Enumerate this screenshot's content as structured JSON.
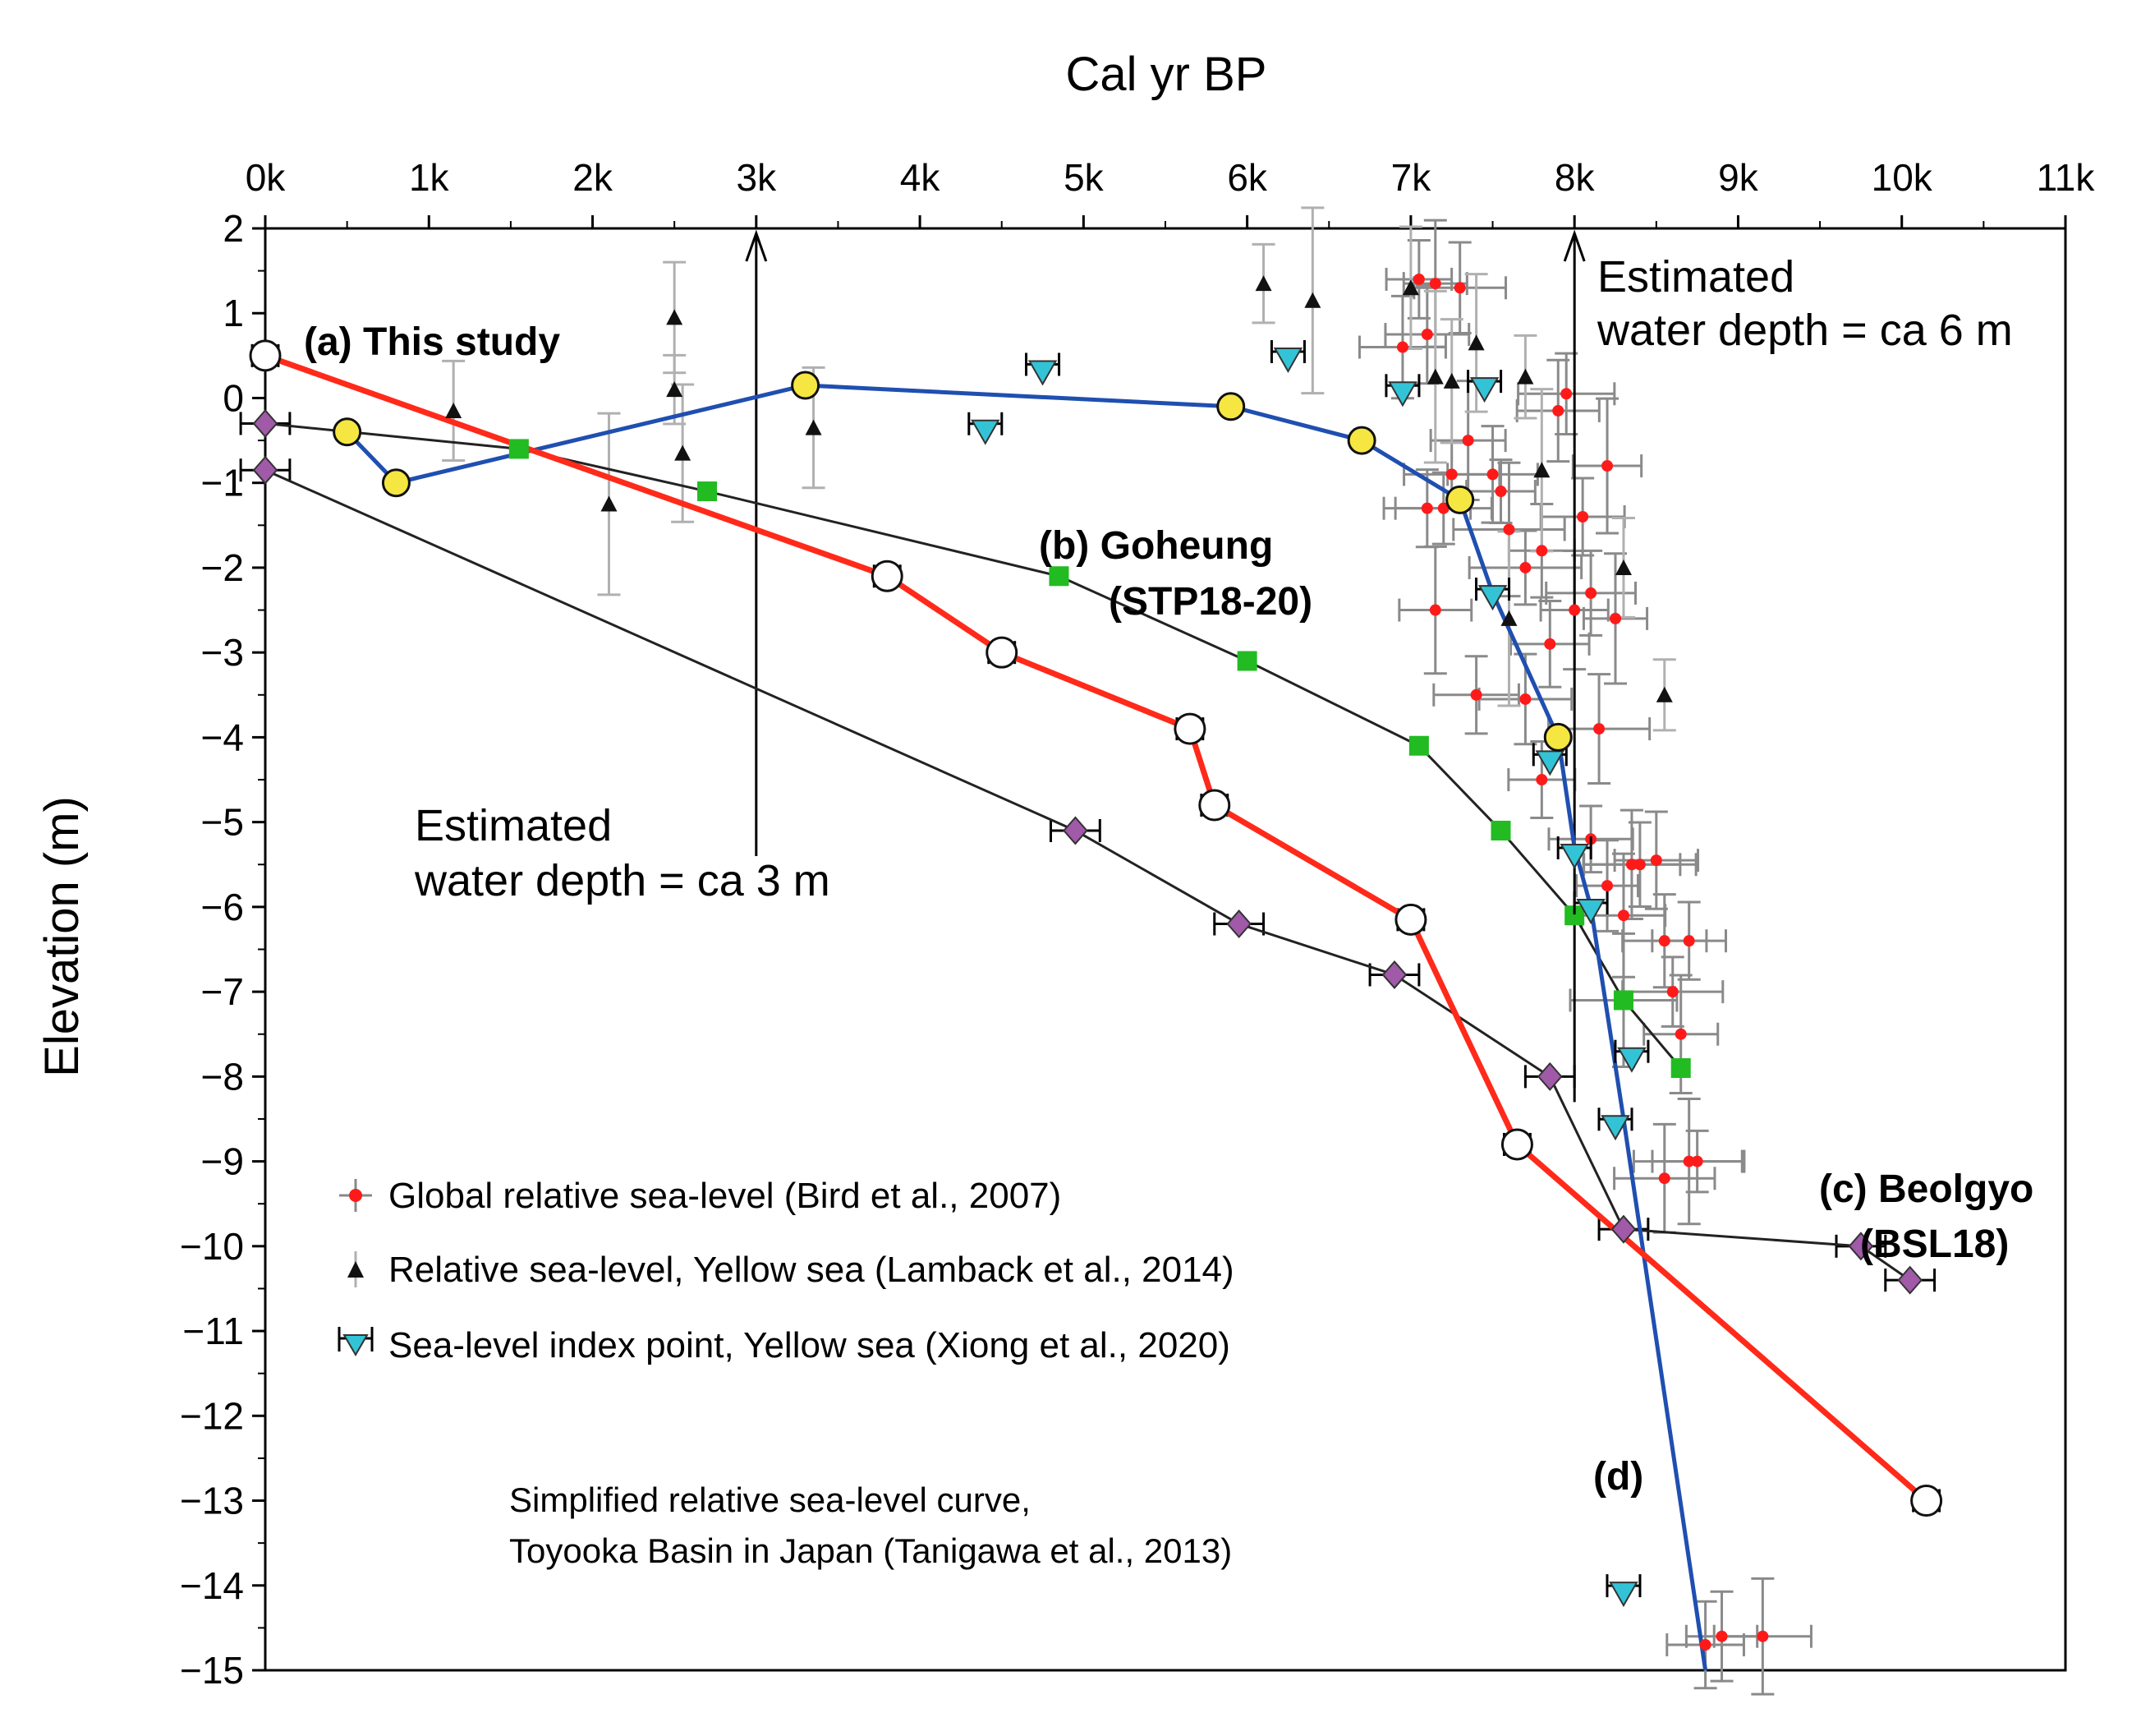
{
  "chart_data": {
    "type": "scatter",
    "xlabel": "Cal yr BP",
    "ylabel": "Elevation (m)",
    "xlim": [
      0,
      11000
    ],
    "ylim": [
      -15,
      2
    ],
    "x_ticks": [
      "0k",
      "1k",
      "2k",
      "3k",
      "4k",
      "5k",
      "6k",
      "7k",
      "8k",
      "9k",
      "10k",
      "11k"
    ],
    "y_ticks": [
      "2",
      "1",
      "0",
      "−1",
      "−2",
      "−3",
      "−4",
      "−5",
      "−6",
      "−7",
      "−8",
      "−9",
      "−10",
      "−11",
      "−12",
      "−13",
      "−14",
      "−15"
    ],
    "series": [
      {
        "key": "a",
        "style": "red-open-circle",
        "points": [
          [
            0,
            0.5
          ],
          [
            3800,
            -2.1
          ],
          [
            4500,
            -3.0
          ],
          [
            5650,
            -3.9
          ],
          [
            5800,
            -4.8
          ],
          [
            7000,
            -6.15
          ],
          [
            7650,
            -8.8
          ],
          [
            10150,
            -13.0
          ]
        ],
        "line": [
          [
            0,
            0.5
          ],
          [
            3800,
            -2.1
          ],
          [
            4500,
            -3.0
          ],
          [
            5650,
            -3.9
          ],
          [
            5800,
            -4.8
          ],
          [
            7000,
            -6.15
          ],
          [
            7650,
            -8.8
          ],
          [
            10150,
            -13.0
          ]
        ]
      },
      {
        "key": "b",
        "style": "green-square",
        "points": [
          [
            1550,
            -0.6
          ],
          [
            2700,
            -1.1
          ],
          [
            4850,
            -2.1
          ],
          [
            6000,
            -3.1
          ],
          [
            7050,
            -4.1
          ],
          [
            7550,
            -5.1
          ],
          [
            8000,
            -6.1
          ],
          [
            8300,
            -7.1
          ],
          [
            8650,
            -7.9
          ]
        ],
        "line": [
          [
            0,
            -0.3
          ],
          [
            1550,
            -0.6
          ],
          [
            2700,
            -1.1
          ],
          [
            4850,
            -2.1
          ],
          [
            6000,
            -3.1
          ],
          [
            7050,
            -4.1
          ],
          [
            7550,
            -5.1
          ],
          [
            8000,
            -6.1
          ],
          [
            8300,
            -7.1
          ],
          [
            8650,
            -7.9
          ]
        ]
      },
      {
        "key": "c",
        "style": "purple-diamond",
        "points": [
          [
            0,
            -0.3
          ],
          [
            0,
            -0.85
          ],
          [
            4950,
            -5.1
          ],
          [
            5950,
            -6.2
          ],
          [
            6900,
            -6.8
          ],
          [
            7850,
            -8.0
          ],
          [
            8300,
            -9.8
          ],
          [
            9750,
            -10.0
          ],
          [
            10050,
            -10.4
          ]
        ],
        "line": [
          [
            0,
            -0.85
          ],
          [
            4950,
            -5.1
          ],
          [
            5950,
            -6.2
          ],
          [
            6900,
            -6.8
          ],
          [
            7850,
            -8.0
          ],
          [
            8300,
            -9.8
          ],
          [
            9750,
            -10.0
          ],
          [
            10050,
            -10.4
          ]
        ]
      },
      {
        "key": "d",
        "style": "yellow-circle",
        "points": [
          [
            500,
            -0.4
          ],
          [
            800,
            -1.0
          ],
          [
            3300,
            0.15
          ],
          [
            5900,
            -0.1
          ],
          [
            6700,
            -0.5
          ],
          [
            7300,
            -1.2
          ],
          [
            7900,
            -4.0
          ]
        ],
        "line": [
          [
            500,
            -0.4
          ],
          [
            800,
            -1.0
          ],
          [
            3300,
            0.15
          ],
          [
            5900,
            -0.1
          ],
          [
            6700,
            -0.5
          ],
          [
            7300,
            -1.2
          ],
          [
            7500,
            -2.3
          ],
          [
            7900,
            -4.0
          ],
          [
            8000,
            -5.3
          ],
          [
            8100,
            -6.0
          ],
          [
            8300,
            -8.5
          ],
          [
            8800,
            -15
          ]
        ]
      },
      {
        "key": "xiong",
        "style": "cyan-triangle",
        "points": [
          [
            4750,
            0.3
          ],
          [
            6250,
            0.45
          ],
          [
            4400,
            -0.4
          ],
          [
            6950,
            0.05
          ],
          [
            7450,
            0.1
          ],
          [
            7500,
            -2.35
          ],
          [
            7850,
            -4.3
          ],
          [
            8000,
            -5.4
          ],
          [
            8100,
            -6.05
          ],
          [
            8350,
            -7.8
          ],
          [
            8250,
            -8.6
          ],
          [
            8300,
            -14.1
          ]
        ]
      },
      {
        "key": "lambeck",
        "style": "black-triangle",
        "points": [
          [
            1150,
            -0.15
          ],
          [
            2100,
            -1.25
          ],
          [
            2500,
            0.1
          ],
          [
            2500,
            0.95
          ],
          [
            2550,
            -0.65
          ],
          [
            3350,
            -0.35
          ],
          [
            6100,
            1.35
          ],
          [
            6400,
            1.15
          ],
          [
            7000,
            1.3
          ],
          [
            7150,
            0.25
          ],
          [
            7400,
            0.65
          ],
          [
            7250,
            0.2
          ],
          [
            7700,
            0.25
          ],
          [
            7800,
            -0.85
          ],
          [
            7600,
            -2.6
          ],
          [
            8300,
            -2.0
          ],
          [
            8550,
            -3.5
          ]
        ]
      },
      {
        "key": "bird",
        "style": "red-dot",
        "points": [
          [
            6950,
            0.6
          ],
          [
            7050,
            1.4
          ],
          [
            7100,
            0.75
          ],
          [
            7150,
            1.35
          ],
          [
            7300,
            1.3
          ],
          [
            7350,
            -0.5
          ],
          [
            7250,
            -0.9
          ],
          [
            7100,
            -1.3
          ],
          [
            7200,
            -1.3
          ],
          [
            7500,
            -0.9
          ],
          [
            7550,
            -1.1
          ],
          [
            7600,
            -1.55
          ],
          [
            7800,
            -1.8
          ],
          [
            7700,
            -2.0
          ],
          [
            7900,
            -0.15
          ],
          [
            7950,
            0.05
          ],
          [
            8200,
            -0.8
          ],
          [
            8050,
            -1.4
          ],
          [
            8100,
            -2.3
          ],
          [
            8000,
            -2.5
          ],
          [
            7850,
            -2.9
          ],
          [
            8250,
            -2.6
          ],
          [
            7150,
            -2.5
          ],
          [
            7400,
            -3.5
          ],
          [
            7700,
            -3.55
          ],
          [
            8150,
            -3.9
          ],
          [
            7800,
            -4.5
          ],
          [
            8100,
            -5.2
          ],
          [
            8200,
            -5.75
          ],
          [
            8350,
            -5.5
          ],
          [
            8400,
            -5.5
          ],
          [
            8500,
            -5.45
          ],
          [
            8300,
            -6.1
          ],
          [
            8550,
            -6.4
          ],
          [
            8700,
            -6.4
          ],
          [
            8600,
            -7.0
          ],
          [
            8650,
            -7.5
          ],
          [
            8300,
            -7.1
          ],
          [
            8700,
            -9.0
          ],
          [
            8550,
            -9.2
          ],
          [
            8750,
            -9.0
          ],
          [
            8800,
            -14.7
          ],
          [
            8900,
            -14.6
          ],
          [
            9150,
            -14.6
          ]
        ]
      }
    ],
    "annotations": {
      "a": "(a) This study",
      "b1": "(b) Goheung",
      "b2": "(STP18-20)",
      "c1": "(c) Beolgyo",
      "c2": "(BSL18)",
      "d": "(d)",
      "depth3_line1": "Estimated",
      "depth3_line2": "water depth = ca 3 m",
      "depth6_line1": "Estimated",
      "depth6_line2": "water depth = ca 6 m",
      "note_line1": "Simplified relative sea-level curve,",
      "note_line2": "Toyooka Basin in Japan (Tanigawa et al., 2013)"
    },
    "legend": [
      "Global relative sea-level (Bird et al., 2007)",
      "Relative sea-level, Yellow sea (Lamback et al., 2014)",
      "Sea-level index point, Yellow sea (Xiong et al., 2020)"
    ],
    "colors": {
      "a": "#ff2a1a",
      "b_marker": "#22bb22",
      "c_marker": "#a05aa8",
      "d_line": "#1f4fb0",
      "d_marker": "#f5e642",
      "xiong": "#33c3d6",
      "bird": "#ff1a1a",
      "axis": "#000000"
    }
  }
}
